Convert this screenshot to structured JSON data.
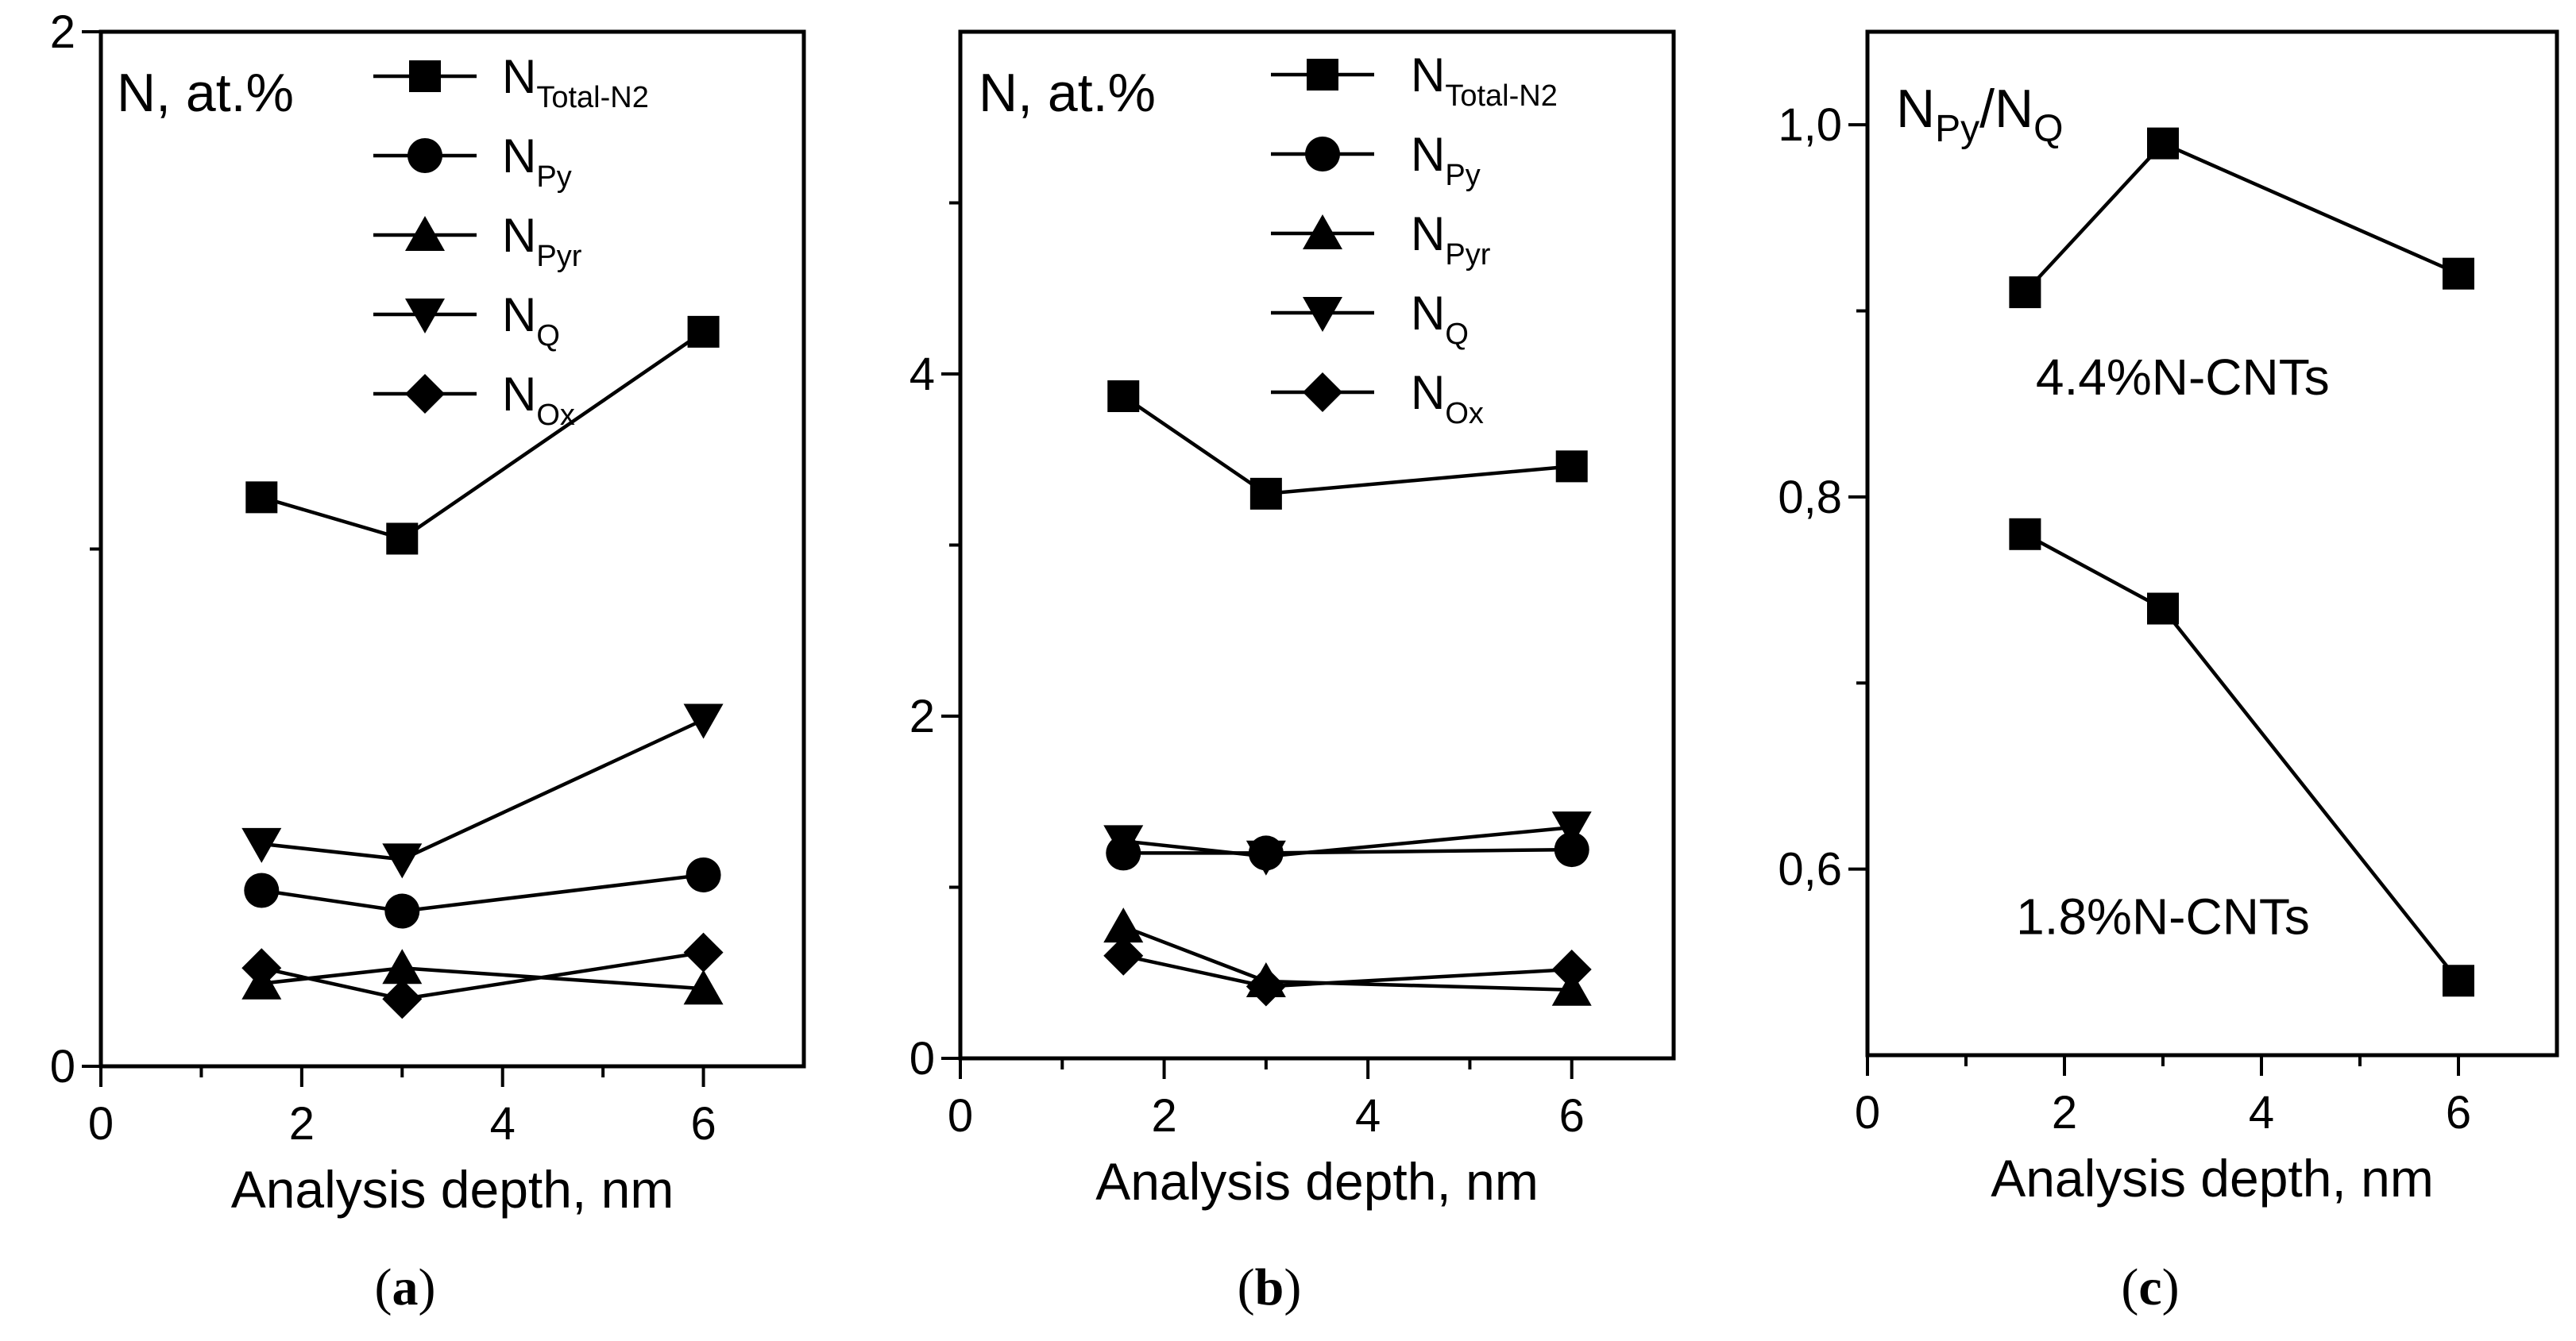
{
  "chart_data": [
    {
      "type": "line",
      "panel": "a",
      "panel_label": "a",
      "xlabel": "Analysis depth, nm",
      "ylabel": {
        "main": "N, at.%",
        "sub": ""
      },
      "xlim": [
        0,
        7
      ],
      "ylim": [
        0,
        2
      ],
      "xticks": [
        0,
        2,
        4,
        6
      ],
      "xtick_labels": [
        "0",
        "2",
        "4",
        "6"
      ],
      "yticks": [
        0,
        2
      ],
      "ytick_labels": [
        "0",
        "2"
      ],
      "y_minor_ticks": [
        1
      ],
      "x": [
        1.6,
        3,
        6
      ],
      "legend": "top-right",
      "series": [
        {
          "name": "N",
          "sub": "Total-N2",
          "marker": "square",
          "values": [
            1.1,
            1.02,
            1.42
          ]
        },
        {
          "name": "N",
          "sub": "Py",
          "marker": "circle",
          "values": [
            0.34,
            0.3,
            0.37
          ]
        },
        {
          "name": "N",
          "sub": "Pyr",
          "marker": "triangle-up",
          "values": [
            0.16,
            0.19,
            0.15
          ]
        },
        {
          "name": "N",
          "sub": "Q",
          "marker": "triangle-down",
          "values": [
            0.43,
            0.4,
            0.67
          ]
        },
        {
          "name": "N",
          "sub": "Ox",
          "marker": "diamond",
          "values": [
            0.19,
            0.13,
            0.22
          ]
        }
      ],
      "annotations": []
    },
    {
      "type": "line",
      "panel": "b",
      "panel_label": "b",
      "xlabel": "Analysis depth, nm",
      "ylabel": {
        "main": "N, at.%",
        "sub": ""
      },
      "xlim": [
        0,
        7
      ],
      "ylim": [
        0,
        6
      ],
      "xticks": [
        0,
        2,
        4,
        6
      ],
      "xtick_labels": [
        "0",
        "2",
        "4",
        "6"
      ],
      "yticks": [
        0,
        2,
        4
      ],
      "ytick_labels": [
        "0",
        "2",
        "4"
      ],
      "y_minor_ticks": [
        1,
        3,
        5
      ],
      "x": [
        1.6,
        3,
        6
      ],
      "legend": "top-right",
      "series": [
        {
          "name": "N",
          "sub": "Total-N2",
          "marker": "square",
          "values": [
            3.87,
            3.3,
            3.46
          ]
        },
        {
          "name": "N",
          "sub": "Py",
          "marker": "circle",
          "values": [
            1.2,
            1.2,
            1.22
          ]
        },
        {
          "name": "N",
          "sub": "Pyr",
          "marker": "triangle-up",
          "values": [
            0.77,
            0.45,
            0.4
          ]
        },
        {
          "name": "N",
          "sub": "Q",
          "marker": "triangle-down",
          "values": [
            1.27,
            1.18,
            1.35
          ]
        },
        {
          "name": "N",
          "sub": "Ox",
          "marker": "diamond",
          "values": [
            0.6,
            0.42,
            0.52
          ]
        }
      ],
      "annotations": []
    },
    {
      "type": "line",
      "panel": "c",
      "panel_label": "c",
      "xlabel": "Analysis depth, nm",
      "ylabel": {
        "main": "N",
        "sub": "Py",
        "main2": "/N",
        "sub2": "Q"
      },
      "xlim": [
        0,
        7
      ],
      "ylim": [
        0.5,
        1.05
      ],
      "xticks": [
        0,
        2,
        4,
        6
      ],
      "xtick_labels": [
        "0",
        "2",
        "4",
        "6"
      ],
      "yticks": [
        0.6,
        0.8,
        1.0
      ],
      "ytick_labels": [
        "0,6",
        "0,8",
        "1,0"
      ],
      "y_minor_ticks": [
        0.7,
        0.9
      ],
      "x": [
        1.6,
        3,
        6
      ],
      "legend": "none",
      "series": [
        {
          "name": "4.4%N-CNTs",
          "sub": "",
          "marker": "square",
          "values": [
            0.91,
            0.99,
            0.92
          ]
        },
        {
          "name": "1.8%N-CNTs",
          "sub": "",
          "marker": "square",
          "values": [
            0.78,
            0.74,
            0.54
          ]
        }
      ],
      "annotations": [
        {
          "text": "4.4%N-CNTs",
          "x": 3.2,
          "y": 0.855
        },
        {
          "text": "1.8%N-CNTs",
          "x": 3.0,
          "y": 0.565
        }
      ]
    }
  ]
}
